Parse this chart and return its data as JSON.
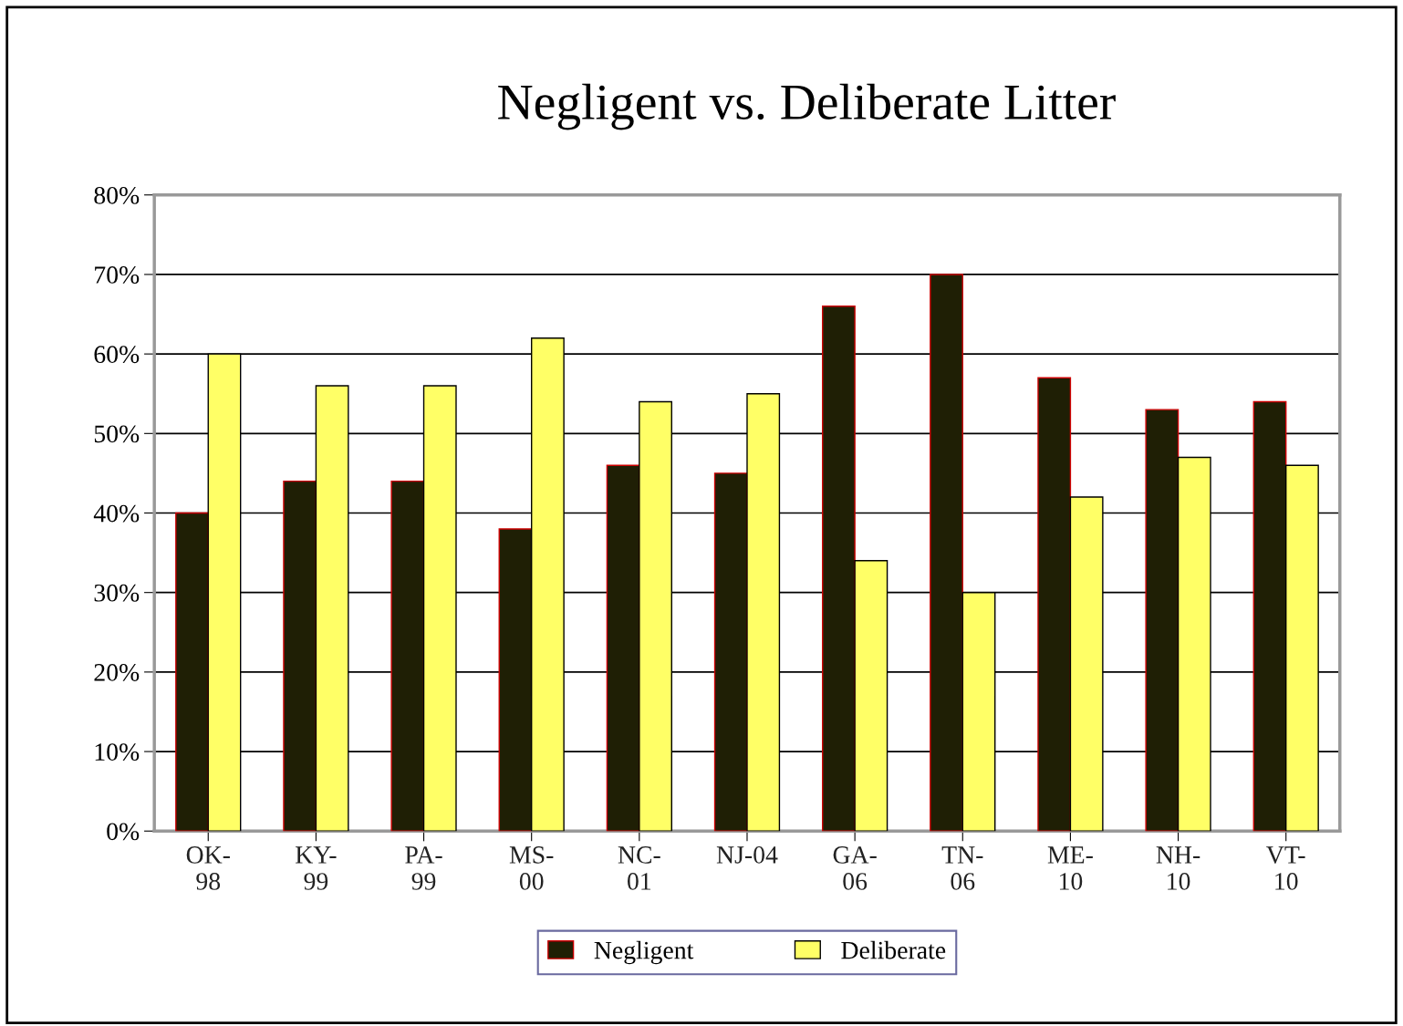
{
  "chart_data": {
    "type": "bar",
    "title": "Negligent vs. Deliberate Litter",
    "categories": [
      "OK-\n98",
      "KY-\n99",
      "PA-\n99",
      "MS-\n00",
      "NC-\n01",
      "NJ-04",
      "GA-\n06",
      "TN-\n06",
      "ME-\n10",
      "NH-\n10",
      "VT-\n10"
    ],
    "series": [
      {
        "name": "Negligent",
        "color": "#1f1f05",
        "values": [
          40,
          44,
          44,
          38,
          46,
          45,
          66,
          70,
          57,
          53,
          54
        ]
      },
      {
        "name": "Deliberate",
        "color": "#ffff66",
        "values": [
          60,
          56,
          56,
          62,
          54,
          55,
          34,
          30,
          42,
          47,
          46
        ]
      }
    ],
    "ylim": [
      0,
      80
    ],
    "yticks": [
      {
        "value": 0,
        "label": "0%"
      },
      {
        "value": 10,
        "label": "10%"
      },
      {
        "value": 20,
        "label": "20%"
      },
      {
        "value": 30,
        "label": "30%"
      },
      {
        "value": 40,
        "label": "40%"
      },
      {
        "value": 50,
        "label": "50%"
      },
      {
        "value": 60,
        "label": "60%"
      },
      {
        "value": 70,
        "label": "70%"
      },
      {
        "value": 80,
        "label": "80%"
      }
    ],
    "grid": "y",
    "legend": "bottom"
  }
}
